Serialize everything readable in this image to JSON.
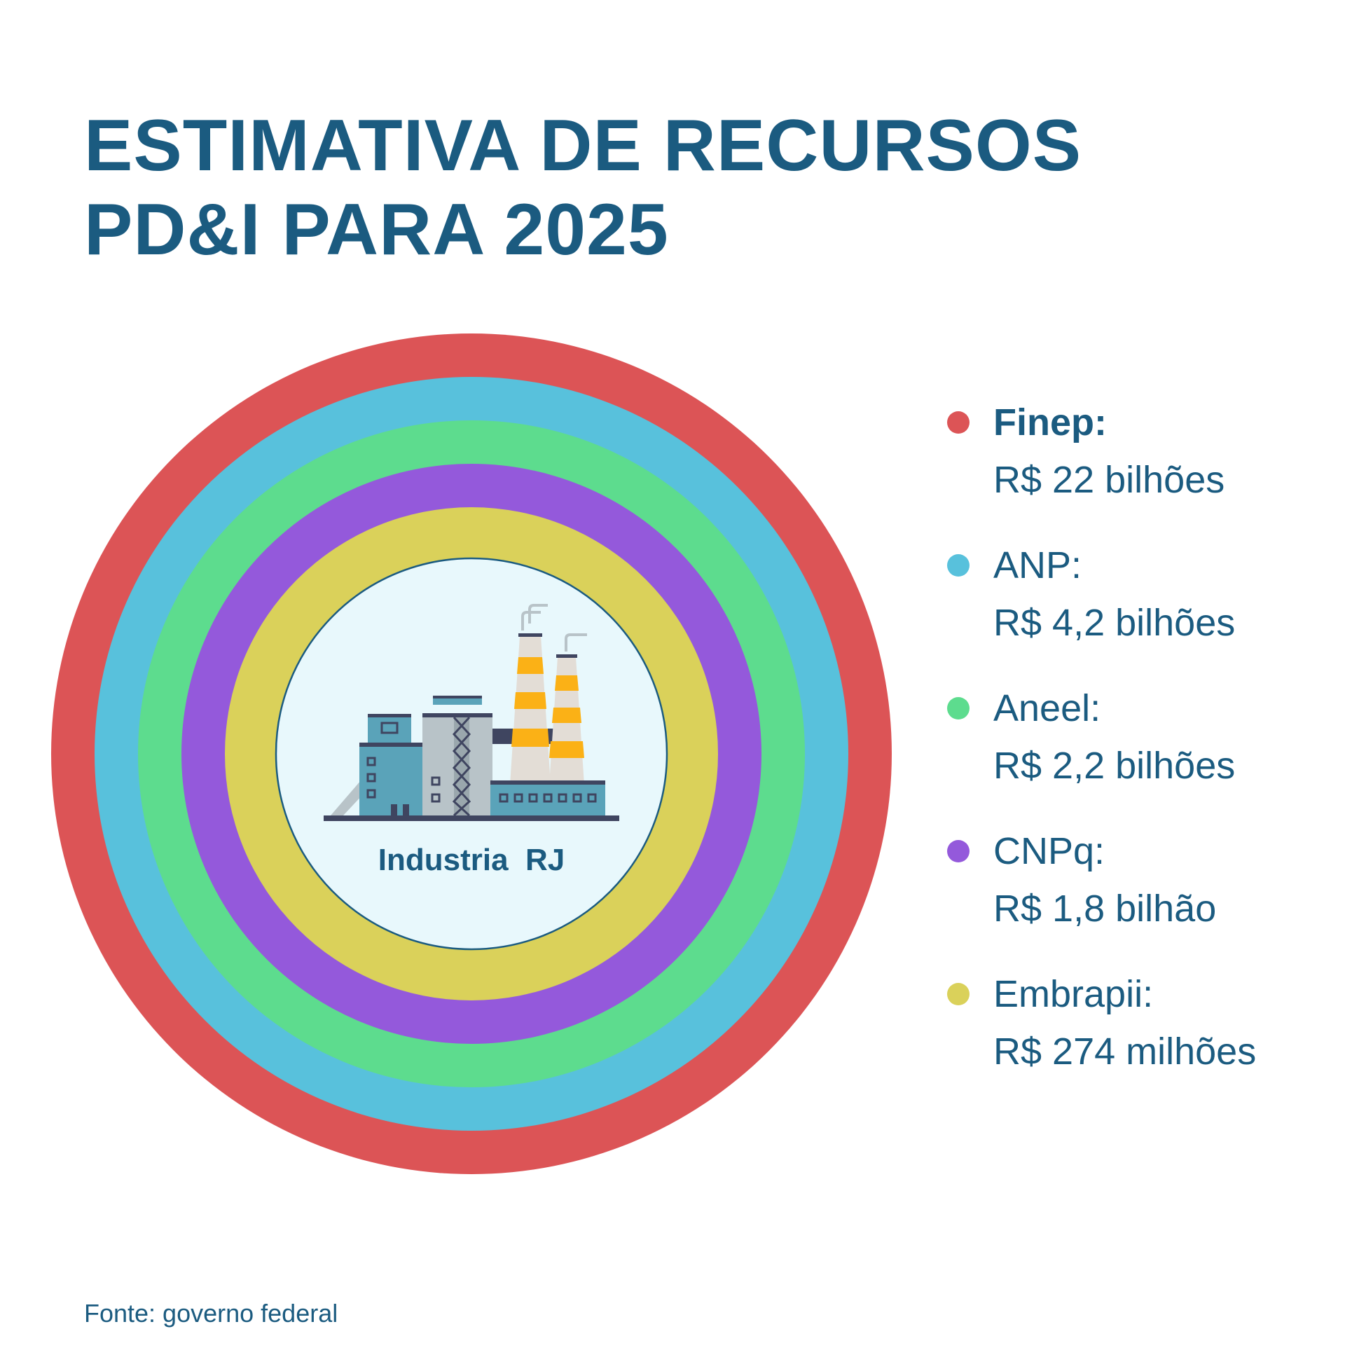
{
  "title": {
    "line1": "ESTIMATIVA DE RECURSOS",
    "line2": "PD&I PARA 2025"
  },
  "center_label": "Industria  RJ",
  "source": "Fonte: governo federal",
  "colors": {
    "text": "#1b5b80",
    "finep": "#dc5456",
    "anp": "#58c1dc",
    "aneel": "#5ddc8e",
    "cnpq": "#9459db",
    "embrapii": "#dad15a",
    "center_fill": "#e8f8fc"
  },
  "chart_data": {
    "type": "concentric-rings",
    "title": "ESTIMATIVA DE RECURSOS PD&I PARA 2025",
    "unit": "R$",
    "legend_position": "right",
    "series": [
      {
        "name": "Finep",
        "label": "Finep:",
        "value_text": "R$ 22 bilhões",
        "value_brl_billions": 22,
        "color": "#dc5456",
        "emphasis": true
      },
      {
        "name": "ANP",
        "label": "ANP:",
        "value_text": "R$ 4,2 bilhões",
        "value_brl_billions": 4.2,
        "color": "#58c1dc",
        "emphasis": false
      },
      {
        "name": "Aneel",
        "label": "Aneel:",
        "value_text": "R$ 2,2 bilhões",
        "value_brl_billions": 2.2,
        "color": "#5ddc8e",
        "emphasis": false
      },
      {
        "name": "CNPq",
        "label": "CNPq:",
        "value_text": "R$ 1,8 bilhão",
        "value_brl_billions": 1.8,
        "color": "#9459db",
        "emphasis": false
      },
      {
        "name": "Embrapii",
        "label": "Embrapii:",
        "value_text": "R$ 274 milhões",
        "value_brl_billions": 0.274,
        "color": "#dad15a",
        "emphasis": false
      }
    ]
  }
}
